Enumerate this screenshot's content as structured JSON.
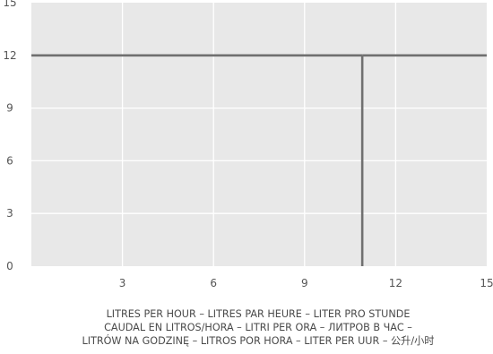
{
  "chart_data": {
    "type": "line",
    "xlabel_lines": [
      "LITRES PER HOUR – LITRES PAR HEURE – LITER PRO STUNDE",
      "CAUDAL EN LITROS/HORA – LITRI PER ORA – ЛИТРОВ В ЧАС –",
      "LITRÓW NA GODZINĘ – LITROS POR HORA  – LITER PER UUR – 公升/小时"
    ],
    "ylabel": "",
    "xlim": [
      0,
      15
    ],
    "ylim": [
      0,
      15
    ],
    "x_ticks": [
      "3",
      "6",
      "9",
      "12",
      "15"
    ],
    "y_ticks": [
      "0",
      "3",
      "6",
      "9",
      "12",
      "15"
    ],
    "grid": true,
    "colors": {
      "plot_background": "#e8e8e8",
      "grid": "#ffffff",
      "line": "#707070"
    },
    "series": [
      {
        "x": [
          0,
          10.9
        ],
        "y": [
          12,
          12
        ]
      },
      {
        "x": [
          10.9,
          15
        ],
        "y": [
          12,
          12
        ]
      },
      {
        "x": [
          10.9,
          10.9
        ],
        "y": [
          0,
          12
        ]
      }
    ]
  }
}
